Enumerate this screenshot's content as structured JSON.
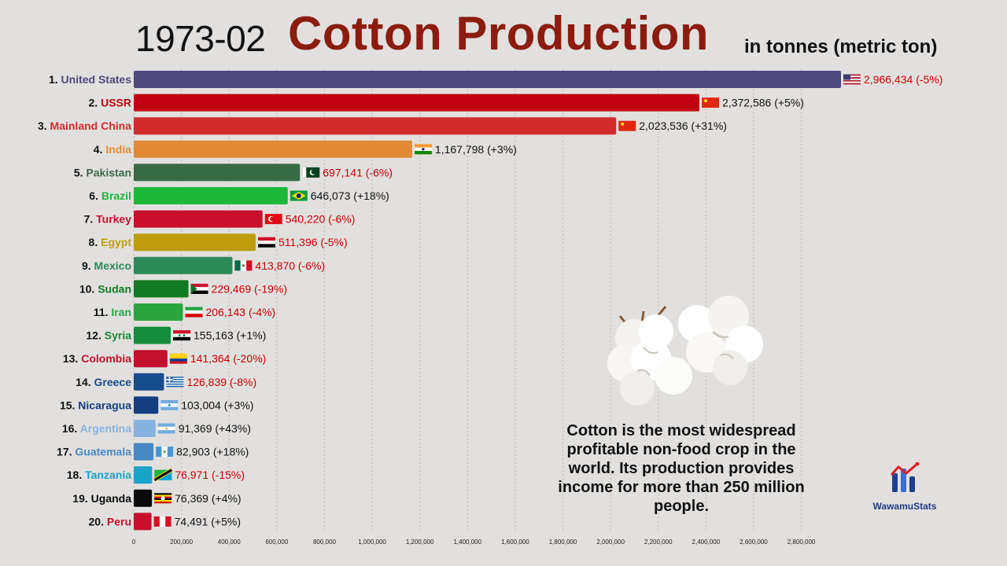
{
  "header": {
    "date": "1973-02",
    "title": "Cotton Production",
    "unit": "in tonnes (metric ton)"
  },
  "note": "Cotton is the most widespread profitable non-food crop in the world. Its production provides income for more than 250 million people.",
  "brand": {
    "name": "WawamuStats",
    "icon": "wawamustats-logo-icon"
  },
  "colors": {
    "increase": "#111111",
    "decrease": "#cc0000"
  },
  "chart_data": {
    "type": "bar",
    "orientation": "horizontal",
    "xlim": [
      0,
      2966434
    ],
    "ticks": [
      {
        "v": 0,
        "label": "0"
      },
      {
        "v": 200000,
        "label": "200,000"
      },
      {
        "v": 400000,
        "label": "400,000"
      },
      {
        "v": 600000,
        "label": "600,000"
      },
      {
        "v": 800000,
        "label": "800,000"
      },
      {
        "v": 1000000,
        "label": "1,000,000"
      },
      {
        "v": 1200000,
        "label": "1,200,000"
      },
      {
        "v": 1400000,
        "label": "1,400,000"
      },
      {
        "v": 1600000,
        "label": "1,600,000"
      },
      {
        "v": 1800000,
        "label": "1,800,000"
      },
      {
        "v": 2000000,
        "label": "2,000,000"
      },
      {
        "v": 2200000,
        "label": "2,200,000"
      },
      {
        "v": 2400000,
        "label": "2,400,000"
      },
      {
        "v": 2600000,
        "label": "2,600,000"
      },
      {
        "v": 2800000,
        "label": "2,800,000"
      }
    ],
    "grid": "vertical dotted",
    "bars": [
      {
        "rank": "1.",
        "name": "United States",
        "value": 2966434,
        "value_label": "2,966,434 (-5%)",
        "change": -5,
        "color": "#4e4a7e",
        "flag": "usa-flag-icon"
      },
      {
        "rank": "2.",
        "name": "USSR",
        "value": 2372586,
        "value_label": "2,372,586 (+5%)",
        "change": 5,
        "color": "#c1000f",
        "flag": "ussr-flag-icon"
      },
      {
        "rank": "3.",
        "name": "Mainland China",
        "value": 2023536,
        "value_label": "2,023,536 (+31%)",
        "change": 31,
        "color": "#d32b2b",
        "flag": "china-flag-icon"
      },
      {
        "rank": "4.",
        "name": "India",
        "value": 1167798,
        "value_label": "1,167,798 (+3%)",
        "change": 3,
        "color": "#e08a35",
        "flag": "india-flag-icon"
      },
      {
        "rank": "5.",
        "name": "Pakistan",
        "value": 697141,
        "value_label": "697,141 (-6%)",
        "change": -6,
        "color": "#3a6b48",
        "flag": "pakistan-flag-icon"
      },
      {
        "rank": "6.",
        "name": "Brazil",
        "value": 646073,
        "value_label": "646,073 (+18%)",
        "change": 18,
        "color": "#1cb83a",
        "flag": "brazil-flag-icon"
      },
      {
        "rank": "7.",
        "name": "Turkey",
        "value": 540220,
        "value_label": "540,220 (-6%)",
        "change": -6,
        "color": "#c8102e",
        "flag": "turkey-flag-icon"
      },
      {
        "rank": "8.",
        "name": "Egypt",
        "value": 511396,
        "value_label": "511,396 (-5%)",
        "change": -5,
        "color": "#bf9c0e",
        "flag": "egypt-flag-icon"
      },
      {
        "rank": "9.",
        "name": "Mexico",
        "value": 413870,
        "value_label": "413,870 (-6%)",
        "change": -6,
        "color": "#2a8a5a",
        "flag": "mexico-flag-icon"
      },
      {
        "rank": "10.",
        "name": "Sudan",
        "value": 229469,
        "value_label": "229,469 (-19%)",
        "change": -19,
        "color": "#117a22",
        "flag": "sudan-flag-icon"
      },
      {
        "rank": "11.",
        "name": "Iran",
        "value": 206143,
        "value_label": "206,143 (-4%)",
        "change": -4,
        "color": "#2aa53e",
        "flag": "iran-flag-icon"
      },
      {
        "rank": "12.",
        "name": "Syria",
        "value": 155163,
        "value_label": "155,163 (+1%)",
        "change": 1,
        "color": "#138c3c",
        "flag": "syria-flag-icon"
      },
      {
        "rank": "13.",
        "name": "Colombia",
        "value": 141364,
        "value_label": "141,364 (-20%)",
        "change": -20,
        "color": "#c4102e",
        "flag": "colombia-flag-icon"
      },
      {
        "rank": "14.",
        "name": "Greece",
        "value": 126839,
        "value_label": "126,839 (-8%)",
        "change": -8,
        "color": "#164d8c",
        "flag": "greece-flag-icon"
      },
      {
        "rank": "15.",
        "name": "Nicaragua",
        "value": 103004,
        "value_label": "103,004 (+3%)",
        "change": 3,
        "color": "#133f80",
        "flag": "nicaragua-flag-icon"
      },
      {
        "rank": "16.",
        "name": "Argentina",
        "value": 91369,
        "value_label": "91,369 (+43%)",
        "change": 43,
        "color": "#86b3e0",
        "flag": "argentina-flag-icon"
      },
      {
        "rank": "17.",
        "name": "Guatemala",
        "value": 82903,
        "value_label": "82,903 (+18%)",
        "change": 18,
        "color": "#4a88c4",
        "flag": "guatemala-flag-icon"
      },
      {
        "rank": "18.",
        "name": "Tanzania",
        "value": 76971,
        "value_label": "76,971 (-15%)",
        "change": -15,
        "color": "#18a4c8",
        "flag": "tanzania-flag-icon"
      },
      {
        "rank": "19.",
        "name": "Uganda",
        "value": 76369,
        "value_label": "76,369 (+4%)",
        "change": 4,
        "color": "#0a0a0a",
        "flag": "uganda-flag-icon"
      },
      {
        "rank": "20.",
        "name": "Peru",
        "value": 74491,
        "value_label": "74,491 (+5%)",
        "change": 5,
        "color": "#c8102e",
        "flag": "peru-flag-icon"
      }
    ]
  }
}
